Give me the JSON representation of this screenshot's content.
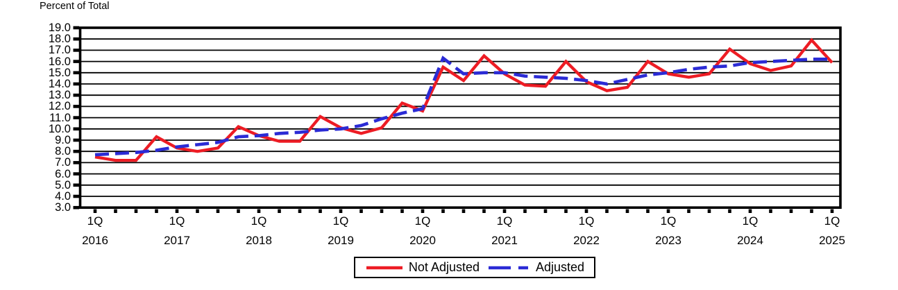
{
  "title": "Percent of Total",
  "chart_data": {
    "type": "line",
    "title": "Percent of Total",
    "xlabel": "",
    "ylabel": "Percent of Total",
    "ylim": [
      3.0,
      19.0
    ],
    "y_tick_step": 1.0,
    "grid": true,
    "legend_position": "bottom-center",
    "y_tick_labels": [
      "19.0",
      "18.0",
      "17.0",
      "16.0",
      "15.0",
      "14.0",
      "13.0",
      "12.0",
      "11.0",
      "10.0",
      "9.0",
      "8.0",
      "7.0",
      "6.0",
      "5.0",
      "4.0",
      "3.0"
    ],
    "x_tick_labels": [
      {
        "quarter": "1Q",
        "year": "2016"
      },
      {
        "quarter": "1Q",
        "year": "2017"
      },
      {
        "quarter": "1Q",
        "year": "2018"
      },
      {
        "quarter": "1Q",
        "year": "2019"
      },
      {
        "quarter": "1Q",
        "year": "2020"
      },
      {
        "quarter": "1Q",
        "year": "2021"
      },
      {
        "quarter": "1Q",
        "year": "2022"
      },
      {
        "quarter": "1Q",
        "year": "2023"
      },
      {
        "quarter": "1Q",
        "year": "2024"
      },
      {
        "quarter": "1Q",
        "year": "2025"
      }
    ],
    "x_categories": [
      "1Q 2016",
      "2Q 2016",
      "3Q 2016",
      "4Q 2016",
      "1Q 2017",
      "2Q 2017",
      "3Q 2017",
      "4Q 2017",
      "1Q 2018",
      "2Q 2018",
      "3Q 2018",
      "4Q 2018",
      "1Q 2019",
      "2Q 2019",
      "3Q 2019",
      "4Q 2019",
      "1Q 2020",
      "2Q 2020",
      "3Q 2020",
      "4Q 2020",
      "1Q 2021",
      "2Q 2021",
      "3Q 2021",
      "4Q 2021",
      "1Q 2022",
      "2Q 2022",
      "3Q 2022",
      "4Q 2022",
      "1Q 2023",
      "2Q 2023",
      "3Q 2023",
      "4Q 2023",
      "1Q 2024",
      "2Q 2024",
      "3Q 2024",
      "4Q 2024",
      "1Q 2025"
    ],
    "series": [
      {
        "name": "Not Adjusted",
        "color": "#ED1C24",
        "style": "solid",
        "values": [
          7.5,
          7.2,
          7.2,
          9.3,
          8.3,
          8.0,
          8.3,
          10.2,
          9.4,
          8.9,
          8.9,
          11.1,
          10.1,
          9.6,
          10.1,
          12.3,
          11.6,
          15.5,
          14.3,
          16.5,
          14.9,
          13.9,
          13.8,
          16.0,
          14.2,
          13.4,
          13.7,
          16.0,
          14.9,
          14.6,
          14.9,
          17.1,
          15.8,
          15.2,
          15.6,
          17.9,
          15.9
        ]
      },
      {
        "name": "Adjusted",
        "color": "#2B2BD5",
        "style": "dashed",
        "values": [
          7.7,
          7.8,
          7.9,
          8.1,
          8.4,
          8.6,
          8.8,
          9.3,
          9.4,
          9.6,
          9.7,
          9.9,
          10.0,
          10.3,
          10.9,
          11.4,
          11.8,
          16.3,
          14.9,
          15.0,
          15.0,
          14.7,
          14.6,
          14.5,
          14.3,
          14.0,
          14.4,
          14.8,
          15.0,
          15.3,
          15.5,
          15.6,
          15.9,
          16.0,
          16.1,
          16.2,
          16.2
        ]
      }
    ]
  }
}
